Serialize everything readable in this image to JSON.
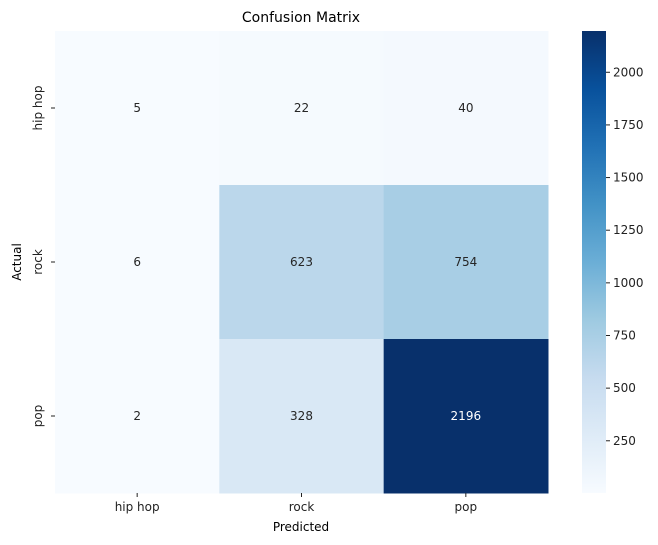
{
  "chart_data": {
    "type": "heatmap",
    "title": "Confusion Matrix",
    "xlabel": "Predicted",
    "ylabel": "Actual",
    "x_categories": [
      "hip hop",
      "rock",
      "pop"
    ],
    "y_categories": [
      "hip hop",
      "rock",
      "pop"
    ],
    "values": [
      [
        5,
        22,
        40
      ],
      [
        6,
        623,
        754
      ],
      [
        2,
        328,
        2196
      ]
    ],
    "colormap": "Blues",
    "color_range": [
      2,
      2196
    ],
    "colorbar_ticks": [
      250,
      500,
      750,
      1000,
      1250,
      1500,
      1750,
      2000
    ],
    "colorbar_tick_labels": [
      "250",
      "500",
      "750",
      "1000",
      "1250",
      "1500",
      "1750",
      "2000"
    ],
    "cell_labels": [
      [
        "5",
        "22",
        "40"
      ],
      [
        "6",
        "623",
        "754"
      ],
      [
        "2",
        "328",
        "2196"
      ]
    ]
  }
}
